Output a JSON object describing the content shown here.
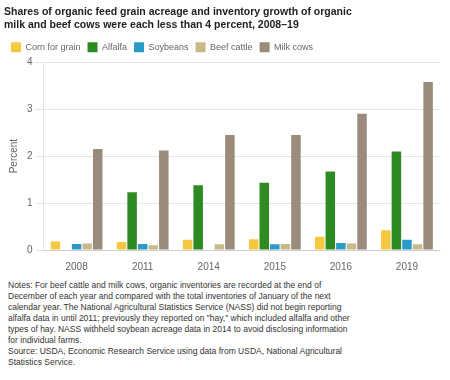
{
  "chart_data": {
    "type": "bar",
    "title": [
      "Shares of organic feed grain acreage and inventory growth of organic",
      "milk and beef cows were each less than 4 percent, 2008–19"
    ],
    "y_label": "Percent",
    "categories": [
      "2008",
      "2011",
      "2014",
      "2015",
      "2016",
      "2019"
    ],
    "series": [
      {
        "name": "Corn for grain",
        "color": "#F5C842",
        "values": [
          0.18,
          0.17,
          0.22,
          0.23,
          0.28,
          0.42
        ]
      },
      {
        "name": "Alfalfa",
        "color": "#2E8B22",
        "values": [
          0.0,
          1.23,
          1.38,
          1.43,
          1.67,
          2.1
        ]
      },
      {
        "name": "Soybeans",
        "color": "#2B9AC8",
        "values": [
          0.13,
          0.13,
          0.0,
          0.12,
          0.15,
          0.22
        ]
      },
      {
        "name": "Beef cattle",
        "color": "#C8B98A",
        "values": [
          0.14,
          0.1,
          0.12,
          0.13,
          0.14,
          0.12
        ]
      },
      {
        "name": "Milk cows",
        "color": "#9B8B7A",
        "values": [
          2.15,
          2.12,
          2.45,
          2.45,
          2.9,
          3.58
        ]
      }
    ],
    "ylim": [
      0,
      4.0
    ],
    "yticks": [
      0,
      1,
      2,
      3,
      4
    ],
    "grid": true,
    "legend": "upper left",
    "annotation": "Notes: For beef cattle and milk cows, organic inventories are recorded at the end of\nDecember of each year and compared with the total inventories of January of the next\ncalendar year. The National Agricultural Statistics Service (NASS) did not begin reporting\nalfalfa data in until 2011; previously they reported on \"hay,\" which included alfalfa and other\ntypes of hay. NASS withheld soybean acreage data in 2014 to avoid disclosing information\nfor individual farms.\nSource: USDA, Economic Research Service using data from USDA, National Agricultural\nStatistics Service."
  }
}
